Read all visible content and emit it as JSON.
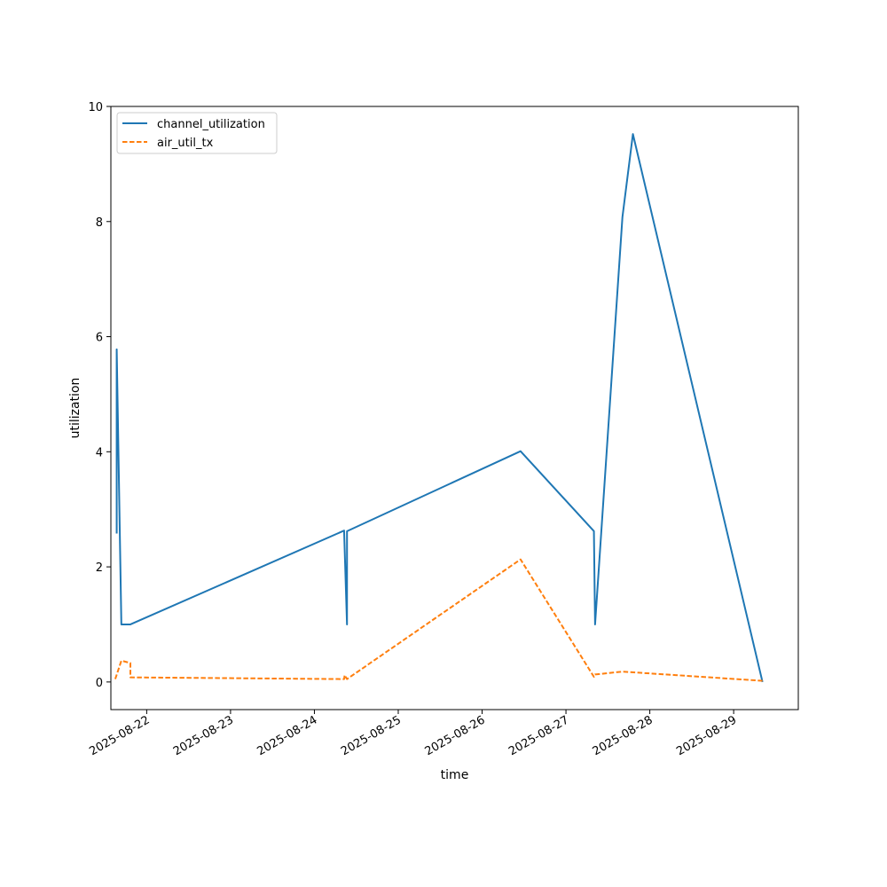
{
  "chart_data": {
    "type": "line",
    "title": "",
    "xlabel": "time",
    "ylabel": "utilization",
    "x_axis_type": "datetime",
    "xlim": [
      "2025-08-21 13:45",
      "2025-08-29 18:30"
    ],
    "ylim": [
      -0.48,
      10
    ],
    "x_ticks": [
      "2025-08-22",
      "2025-08-23",
      "2025-08-24",
      "2025-08-25",
      "2025-08-26",
      "2025-08-27",
      "2025-08-28",
      "2025-08-29"
    ],
    "y_ticks": [
      0,
      2,
      4,
      6,
      8,
      10
    ],
    "grid": false,
    "legend": {
      "position": "top-left"
    },
    "series": [
      {
        "name": "channel_utilization",
        "color": "#1f77b4",
        "style": "solid",
        "points": [
          {
            "x": "2025-08-21 15:25",
            "y": 2.58
          },
          {
            "x": "2025-08-21 15:25",
            "y": 5.78
          },
          {
            "x": "2025-08-21 16:45",
            "y": 1.0
          },
          {
            "x": "2025-08-21 19:20",
            "y": 1.0
          },
          {
            "x": "2025-08-24 08:30",
            "y": 2.63
          },
          {
            "x": "2025-08-24 09:20",
            "y": 1.0
          },
          {
            "x": "2025-08-24 09:20",
            "y": 2.62
          },
          {
            "x": "2025-08-26 11:00",
            "y": 4.01
          },
          {
            "x": "2025-08-27 08:00",
            "y": 2.62
          },
          {
            "x": "2025-08-27 08:20",
            "y": 1.0
          },
          {
            "x": "2025-08-27 16:10",
            "y": 8.08
          },
          {
            "x": "2025-08-27 19:10",
            "y": 9.52
          },
          {
            "x": "2025-08-29 08:15",
            "y": 0.0
          }
        ]
      },
      {
        "name": "air_util_tx",
        "color": "#ff7f0e",
        "style": "dashed",
        "points": [
          {
            "x": "2025-08-21 15:00",
            "y": 0.05
          },
          {
            "x": "2025-08-21 16:45",
            "y": 0.37
          },
          {
            "x": "2025-08-21 19:20",
            "y": 0.33
          },
          {
            "x": "2025-08-21 19:20",
            "y": 0.08
          },
          {
            "x": "2025-08-24 08:30",
            "y": 0.05
          },
          {
            "x": "2025-08-24 08:40",
            "y": 0.12
          },
          {
            "x": "2025-08-24 09:20",
            "y": 0.05
          },
          {
            "x": "2025-08-26 11:00",
            "y": 2.13
          },
          {
            "x": "2025-08-27 08:00",
            "y": 0.09
          },
          {
            "x": "2025-08-27 08:20",
            "y": 0.13
          },
          {
            "x": "2025-08-27 16:10",
            "y": 0.18
          },
          {
            "x": "2025-08-29 08:15",
            "y": 0.02
          }
        ]
      }
    ]
  }
}
